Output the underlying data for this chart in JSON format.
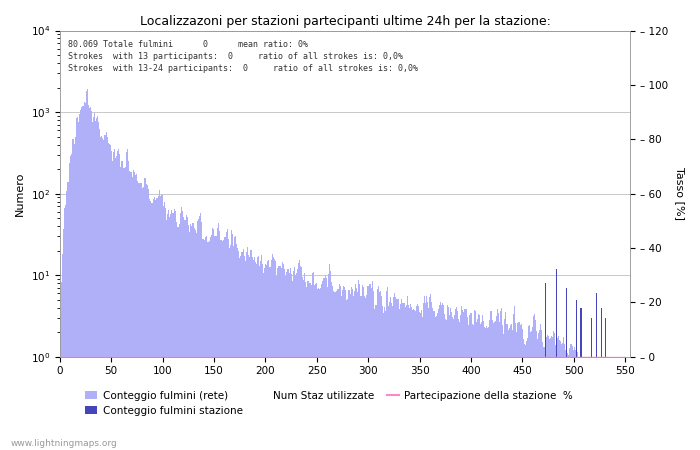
{
  "title": "Localizzazoni per stazioni partecipanti ultime 24h per la stazione:",
  "ylabel_left": "Numero",
  "ylabel_right": "Tasso [%]",
  "annotation_line1": "80.069 Totale fulmini      0      mean ratio: 0%",
  "annotation_line2": "Strokes  with 13 participants:  0     ratio of all strokes is: 0,0%",
  "annotation_line3": "Strokes  with 13-24 participants:  0     ratio of all strokes is: 0,0%",
  "watermark": "www.lightningmaps.org",
  "bar_color_rete": "#b0b0f8",
  "bar_color_stazione": "#4444bb",
  "line_color_partecipazione": "#ff88cc",
  "background_color": "#ffffff",
  "grid_color": "#c8c8c8",
  "xlim": [
    0,
    555
  ],
  "xticks": [
    0,
    50,
    100,
    150,
    200,
    250,
    300,
    350,
    400,
    450,
    500,
    550
  ],
  "ylim_right": [
    0,
    120
  ],
  "yticks_right": [
    0,
    20,
    40,
    60,
    80,
    100,
    120
  ],
  "legend_rete": "Conteggio fulmini (rete)",
  "legend_stazione": "Conteggio fulmini stazione",
  "legend_num": "Num Staz utilizzate",
  "legend_part": "Partecipazione della stazione  %"
}
